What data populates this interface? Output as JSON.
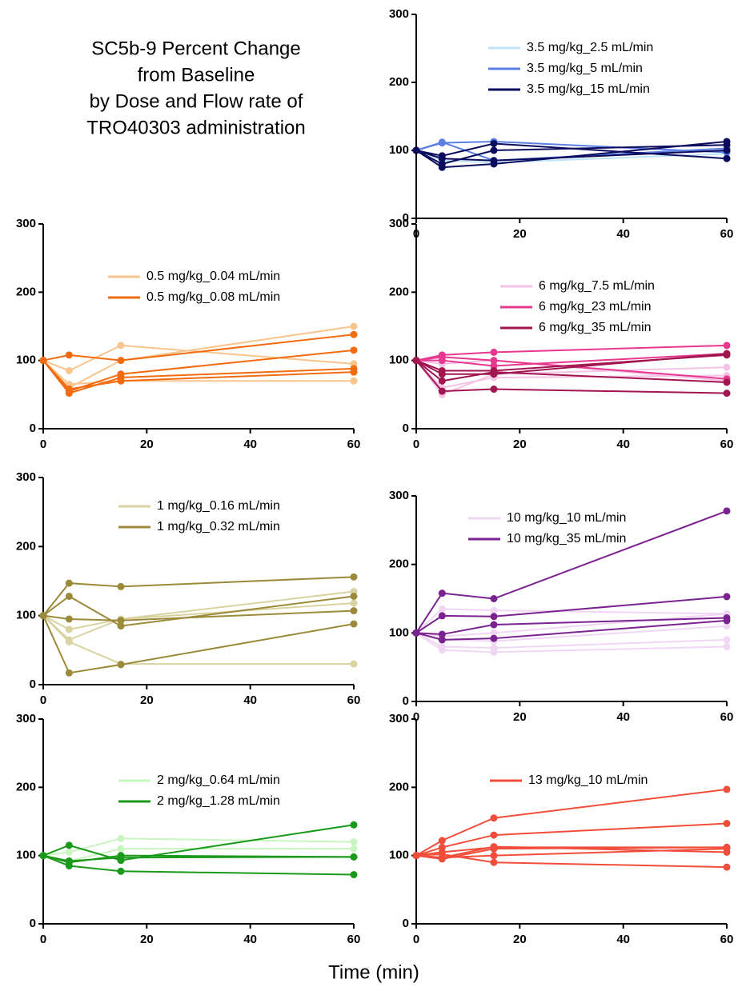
{
  "figure": {
    "title_lines": [
      "SC5b-9 Percent Change",
      "from Baseline",
      "by Dose and Flow rate of",
      "TRO40303 administration"
    ],
    "x_label": "Time (min)"
  },
  "chart_data": [
    {
      "type": "line",
      "x": [
        0,
        5,
        15,
        60
      ],
      "xlim": [
        0,
        60
      ],
      "ylim": [
        0,
        300
      ],
      "xticks": [
        0,
        20,
        40,
        60
      ],
      "yticks": [
        0,
        100,
        200,
        300
      ],
      "series": [
        {
          "name": "3.5 mg/kg_2.5 mL/min",
          "color": "#bfe3f7",
          "lines": [
            [
              100,
              85,
              82,
              95
            ]
          ]
        },
        {
          "name": "3.5 mg/kg_5 mL/min",
          "color": "#5b7fe3",
          "lines": [
            [
              100,
              111,
              113,
              97
            ],
            [
              100,
              112,
              85,
              103
            ]
          ]
        },
        {
          "name": "3.5 mg/kg_15 mL/min",
          "color": "#0b0b5e",
          "lines": [
            [
              100,
              75,
              80,
              113
            ],
            [
              100,
              92,
              110,
              88
            ],
            [
              100,
              80,
              100,
              108
            ],
            [
              100,
              88,
              85,
              100
            ]
          ]
        }
      ]
    },
    {
      "type": "line",
      "x": [
        0,
        5,
        15,
        60
      ],
      "xlim": [
        0,
        60
      ],
      "ylim": [
        0,
        300
      ],
      "xticks": [
        0,
        20,
        40,
        60
      ],
      "yticks": [
        0,
        100,
        200,
        300
      ],
      "series": [
        {
          "name": "0.5 mg/kg_0.04 mL/min",
          "color": "#f8c58e",
          "lines": [
            [
              100,
              85,
              122,
              95
            ],
            [
              100,
              65,
              70,
              70
            ],
            [
              100,
              60,
              100,
              150
            ]
          ]
        },
        {
          "name": "0.5 mg/kg_0.08 mL/min",
          "color": "#f26b10",
          "lines": [
            [
              100,
              108,
              100,
              138
            ],
            [
              100,
              55,
              80,
              115
            ],
            [
              100,
              52,
              75,
              88
            ],
            [
              100,
              58,
              70,
              83
            ]
          ]
        }
      ]
    },
    {
      "type": "line",
      "x": [
        0,
        5,
        15,
        60
      ],
      "xlim": [
        0,
        60
      ],
      "ylim": [
        0,
        300
      ],
      "xticks": [
        0,
        20,
        40,
        60
      ],
      "yticks": [
        0,
        100,
        200,
        300
      ],
      "series": [
        {
          "name": "6 mg/kg_7.5 mL/min",
          "color": "#f4c3e6",
          "lines": [
            [
              100,
              50,
              80,
              90
            ],
            [
              100,
              60,
              75,
              78
            ],
            [
              100,
              95,
              100,
              70
            ]
          ]
        },
        {
          "name": "6 mg/kg_23 mL/min",
          "color": "#e8378f",
          "lines": [
            [
              100,
              108,
              112,
              122
            ],
            [
              100,
              100,
              92,
              110
            ],
            [
              100,
              105,
              100,
              73
            ]
          ]
        },
        {
          "name": "6 mg/kg_35 mL/min",
          "color": "#a11650",
          "lines": [
            [
              100,
              55,
              58,
              52
            ],
            [
              100,
              80,
              80,
              110
            ],
            [
              100,
              70,
              83,
              68
            ],
            [
              100,
              85,
              85,
              108
            ]
          ]
        }
      ]
    },
    {
      "type": "line",
      "x": [
        0,
        5,
        15,
        60
      ],
      "xlim": [
        0,
        60
      ],
      "ylim": [
        0,
        300
      ],
      "xticks": [
        0,
        20,
        40,
        60
      ],
      "yticks": [
        0,
        100,
        200,
        300
      ],
      "series": [
        {
          "name": "1 mg/kg_0.16 mL/min",
          "color": "#d8d3a0",
          "lines": [
            [
              100,
              80,
              95,
              135
            ],
            [
              100,
              62,
              30,
              30
            ],
            [
              100,
              65,
              95,
              118
            ]
          ]
        },
        {
          "name": "1 mg/kg_0.32 mL/min",
          "color": "#9c8a3b",
          "lines": [
            [
              100,
              147,
              142,
              156
            ],
            [
              100,
              128,
              85,
              128
            ],
            [
              100,
              17,
              29,
              88
            ],
            [
              100,
              95,
              93,
              107
            ]
          ]
        }
      ]
    },
    {
      "type": "line",
      "x": [
        0,
        5,
        15,
        60
      ],
      "xlim": [
        0,
        60
      ],
      "ylim": [
        0,
        300
      ],
      "xticks": [
        0,
        20,
        40,
        60
      ],
      "yticks": [
        0,
        100,
        200,
        300
      ],
      "series": [
        {
          "name": "10 mg/kg_10 mL/min",
          "color": "#efd7f4",
          "lines": [
            [
              100,
              75,
              72,
              80
            ],
            [
              100,
              80,
              78,
              90
            ],
            [
              100,
              95,
              100,
              128
            ],
            [
              100,
              135,
              133,
              128
            ],
            [
              100,
              90,
              88,
              110
            ]
          ]
        },
        {
          "name": "10 mg/kg_35 mL/min",
          "color": "#7a2290",
          "lines": [
            [
              100,
              158,
              150,
              278
            ],
            [
              100,
              125,
              124,
              153
            ],
            [
              100,
              90,
              92,
              118
            ],
            [
              100,
              98,
              112,
              122
            ]
          ]
        }
      ]
    },
    {
      "type": "line",
      "x": [
        0,
        5,
        15,
        60
      ],
      "xlim": [
        0,
        60
      ],
      "ylim": [
        0,
        300
      ],
      "xticks": [
        0,
        20,
        40,
        60
      ],
      "yticks": [
        0,
        100,
        200,
        300
      ],
      "series": [
        {
          "name": "2 mg/kg_0.64 mL/min",
          "color": "#c9f5c0",
          "lines": [
            [
              100,
              105,
              125,
              120
            ],
            [
              100,
              92,
              110,
              110
            ]
          ]
        },
        {
          "name": "2 mg/kg_1.28 mL/min",
          "color": "#1a9a1a",
          "lines": [
            [
              100,
              115,
              93,
              145
            ],
            [
              100,
              85,
              77,
              72
            ],
            [
              100,
              90,
              100,
              98
            ],
            [
              100,
              92,
              97,
              98
            ]
          ]
        }
      ]
    },
    {
      "type": "line",
      "x": [
        0,
        5,
        15,
        60
      ],
      "xlim": [
        0,
        60
      ],
      "ylim": [
        0,
        300
      ],
      "xticks": [
        0,
        20,
        40,
        60
      ],
      "yticks": [
        0,
        100,
        200,
        300
      ],
      "series": [
        {
          "name": "13 mg/kg_10 mL/min",
          "color": "#f04d3a",
          "lines": [
            [
              100,
              122,
              155,
              197
            ],
            [
              100,
              112,
              130,
              147
            ],
            [
              100,
              105,
              112,
              112
            ],
            [
              100,
              97,
              100,
              110
            ],
            [
              100,
              97,
              113,
              105
            ],
            [
              100,
              102,
              90,
              83
            ],
            [
              100,
              95,
              110,
              112
            ]
          ]
        }
      ]
    }
  ]
}
